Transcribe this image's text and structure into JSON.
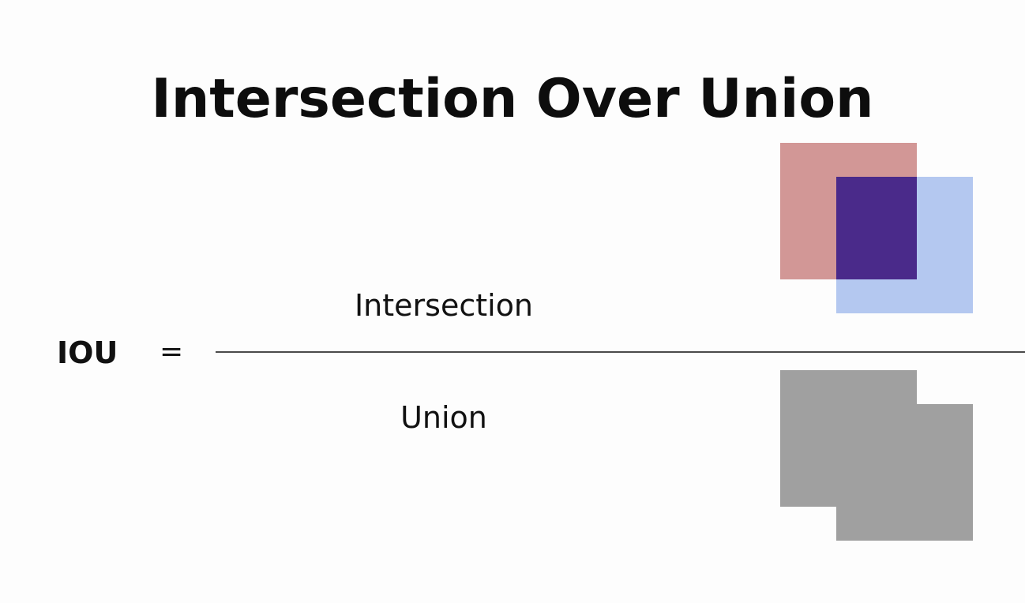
{
  "slide": {
    "title": "Intersection Over Union"
  },
  "formula": {
    "lhs": "IOU",
    "operator": "=",
    "numerator": "Intersection",
    "denominator": "Union"
  },
  "colors": {
    "background": "#fdfdfd",
    "box_a": "#d29796",
    "box_b": "#b4c8f0",
    "intersection": "#4a2a8a",
    "union": "#a0a0a0",
    "fraction_line": "#4a4a4a"
  }
}
